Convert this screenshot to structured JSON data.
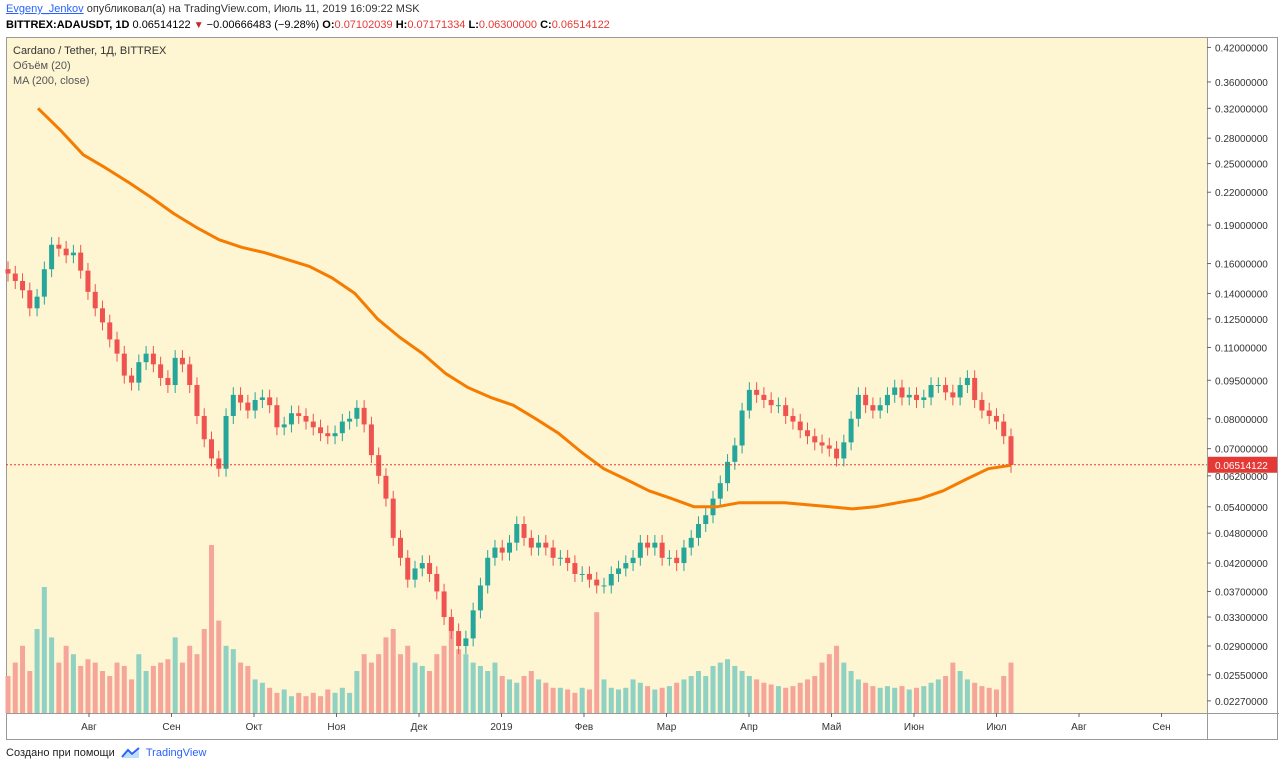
{
  "header": {
    "author": "Evgeny_Jenkov",
    "published_text": "опубликовал(а) на TradingView.com, Июль 11, 2019 16:09:22 MSK",
    "symbol": "BITTREX:ADAUSDT, 1D",
    "last": "0.06514122",
    "change": "−0.00666483 (−9.28%)",
    "o_label": "O:",
    "o_value": "0.07102039",
    "h_label": "H:",
    "h_value": "0.07171334",
    "l_label": "L:",
    "l_value": "0.06300000",
    "c_label": "C:",
    "c_value": "0.06514122"
  },
  "legend": {
    "title": "Cardano / Tether, 1Д, BITTREX",
    "volume": "Объём (20)",
    "ma": "MA (200, close)"
  },
  "footer": {
    "created_text": "Создано при помощи",
    "brand": "TradingView"
  },
  "colors": {
    "background": "#fef5d3",
    "up": "#26a69a",
    "down": "#ef5350",
    "up_volume": "#8fd1c3",
    "down_volume": "#f5a59a",
    "ma": "#f57c00",
    "price_line": "#e53935"
  },
  "chart_data": {
    "type": "candlestick",
    "title": "Cardano / Tether, 1Д, BITTREX",
    "scale": "log",
    "ylim": [
      0.0215,
      0.44
    ],
    "y_ticks": [
      "0.42000000",
      "0.36000000",
      "0.32000000",
      "0.28000000",
      "0.25000000",
      "0.22000000",
      "0.19000000",
      "0.16000000",
      "0.14000000",
      "0.12500000",
      "0.11000000",
      "0.09500000",
      "0.08000000",
      "0.07000000",
      "0.06200000",
      "0.05400000",
      "0.04800000",
      "0.04200000",
      "0.03700000",
      "0.03300000",
      "0.02900000",
      "0.02550000",
      "0.02270000"
    ],
    "x_ticks": [
      "Авг",
      "Сен",
      "Окт",
      "Ноя",
      "Дек",
      "2019",
      "Фев",
      "Мар",
      "Апр",
      "Май",
      "Июн",
      "Июл",
      "Авг",
      "Сен"
    ],
    "last_price": "0.06514122",
    "price_series": {
      "start": "2018-07-11",
      "interval_days": 3,
      "close": [
        0.153,
        0.148,
        0.142,
        0.131,
        0.138,
        0.156,
        0.174,
        0.171,
        0.166,
        0.168,
        0.155,
        0.141,
        0.131,
        0.123,
        0.114,
        0.107,
        0.097,
        0.094,
        0.103,
        0.107,
        0.102,
        0.096,
        0.093,
        0.105,
        0.102,
        0.093,
        0.081,
        0.073,
        0.067,
        0.064,
        0.081,
        0.089,
        0.086,
        0.083,
        0.087,
        0.088,
        0.085,
        0.077,
        0.078,
        0.082,
        0.081,
        0.079,
        0.077,
        0.075,
        0.074,
        0.075,
        0.079,
        0.08,
        0.084,
        0.078,
        0.068,
        0.062,
        0.056,
        0.047,
        0.043,
        0.039,
        0.041,
        0.042,
        0.04,
        0.037,
        0.033,
        0.031,
        0.029,
        0.03,
        0.034,
        0.038,
        0.043,
        0.045,
        0.044,
        0.046,
        0.05,
        0.047,
        0.045,
        0.046,
        0.045,
        0.043,
        0.043,
        0.042,
        0.04,
        0.04,
        0.039,
        0.038,
        0.038,
        0.04,
        0.041,
        0.042,
        0.043,
        0.046,
        0.045,
        0.046,
        0.043,
        0.043,
        0.042,
        0.045,
        0.047,
        0.05,
        0.052,
        0.056,
        0.06,
        0.066,
        0.071,
        0.083,
        0.091,
        0.089,
        0.087,
        0.085,
        0.085,
        0.081,
        0.079,
        0.076,
        0.074,
        0.072,
        0.071,
        0.07,
        0.067,
        0.072,
        0.08,
        0.089,
        0.085,
        0.083,
        0.085,
        0.089,
        0.092,
        0.088,
        0.089,
        0.087,
        0.088,
        0.093,
        0.093,
        0.09,
        0.088,
        0.093,
        0.096,
        0.087,
        0.083,
        0.081,
        0.079,
        0.074,
        0.0651
      ],
      "ma200": [
        0.32,
        0.29,
        0.26,
        0.245,
        0.23,
        0.215,
        0.2,
        0.188,
        0.178,
        0.172,
        0.168,
        0.163,
        0.158,
        0.15,
        0.14,
        0.125,
        0.115,
        0.107,
        0.098,
        0.092,
        0.088,
        0.085,
        0.08,
        0.075,
        0.069,
        0.064,
        0.061,
        0.058,
        0.056,
        0.054,
        0.054,
        0.055,
        0.055,
        0.055,
        0.0545,
        0.054,
        0.0535,
        0.054,
        0.055,
        0.056,
        0.058,
        0.061,
        0.064,
        0.065
      ]
    },
    "volume_series": {
      "ylim": [
        0,
        1.0
      ],
      "values": [
        0.22,
        0.3,
        0.4,
        0.25,
        0.5,
        0.75,
        0.45,
        0.3,
        0.4,
        0.35,
        0.28,
        0.32,
        0.3,
        0.25,
        0.22,
        0.3,
        0.28,
        0.2,
        0.35,
        0.25,
        0.28,
        0.3,
        0.32,
        0.45,
        0.3,
        0.4,
        0.35,
        0.5,
        1.0,
        0.55,
        0.4,
        0.38,
        0.3,
        0.28,
        0.2,
        0.18,
        0.15,
        0.12,
        0.14,
        0.1,
        0.12,
        0.1,
        0.12,
        0.1,
        0.14,
        0.12,
        0.15,
        0.12,
        0.25,
        0.35,
        0.3,
        0.35,
        0.45,
        0.5,
        0.35,
        0.4,
        0.3,
        0.28,
        0.25,
        0.35,
        0.4,
        0.55,
        0.38,
        0.35,
        0.3,
        0.28,
        0.25,
        0.3,
        0.22,
        0.2,
        0.18,
        0.22,
        0.25,
        0.2,
        0.18,
        0.15,
        0.15,
        0.14,
        0.12,
        0.15,
        0.14,
        0.6,
        0.2,
        0.15,
        0.14,
        0.15,
        0.2,
        0.18,
        0.16,
        0.14,
        0.15,
        0.16,
        0.18,
        0.2,
        0.22,
        0.25,
        0.22,
        0.28,
        0.3,
        0.32,
        0.28,
        0.25,
        0.22,
        0.2,
        0.18,
        0.17,
        0.16,
        0.15,
        0.16,
        0.18,
        0.2,
        0.22,
        0.3,
        0.35,
        0.4,
        0.3,
        0.25,
        0.2,
        0.18,
        0.16,
        0.15,
        0.16,
        0.15,
        0.16,
        0.14,
        0.15,
        0.16,
        0.18,
        0.2,
        0.22,
        0.3,
        0.25,
        0.2,
        0.18,
        0.16,
        0.15,
        0.14
      ]
    }
  }
}
